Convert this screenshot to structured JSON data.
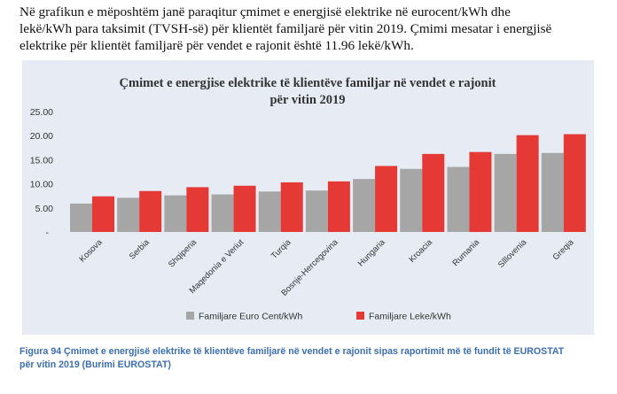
{
  "intro": {
    "line1": "Në grafikun e mëposhtëm janë paraqitur çmimet e energjisë elektrike në eurocent/kWh dhe",
    "line2": "lekë/kWh para taksimit (TVSH-së) për klientët familjarë për vitin 2019. Çmimi mesatar i energjisë",
    "line3": "elektrike për klientët familjarë për vendet e rajonit është 11.96 lekë/kWh."
  },
  "caption": {
    "line1": "Figura 94 Çmimet e energjisë elektrike të klientëve familjarë në vendet e rajonit sipas raportimit më të fundit të EUROSTAT",
    "line2": "për vitin 2019 (Burimi EUROSTAT)"
  },
  "colors": {
    "euro": "#a6a6a6",
    "leke": "#e53935",
    "background": "#e6ebf4",
    "title": "#333333"
  },
  "chart_data": {
    "type": "bar",
    "title_line1": "Çmimet e energjise elektrike të klientëve familjar në vendet e rajonit",
    "title_line2": "për vitin 2019",
    "categories": [
      "Kosova",
      "Serbia",
      "Shqiperia",
      "Maqedonia e Veriut",
      "Turqia",
      "Bosnje-Hercegovina",
      "Hungaria",
      "Kroacia",
      "Rumania",
      "Slllovenia",
      "Greqia"
    ],
    "series": [
      {
        "name": "Familjare Euro Cent/kWh",
        "values": [
          5.9,
          7.1,
          7.6,
          7.8,
          8.4,
          8.6,
          11.0,
          13.1,
          13.5,
          16.2,
          16.4
        ]
      },
      {
        "name": "Familjare Leke/kWh",
        "values": [
          7.4,
          8.5,
          9.3,
          9.6,
          10.3,
          10.5,
          13.7,
          16.2,
          16.6,
          20.1,
          20.3
        ]
      }
    ],
    "yticks": [
      "25.00",
      "20.00",
      "15.00",
      "10.00",
      "5.00",
      "-"
    ],
    "ylim": [
      0,
      25
    ],
    "legend_position": "bottom",
    "grid": false
  }
}
